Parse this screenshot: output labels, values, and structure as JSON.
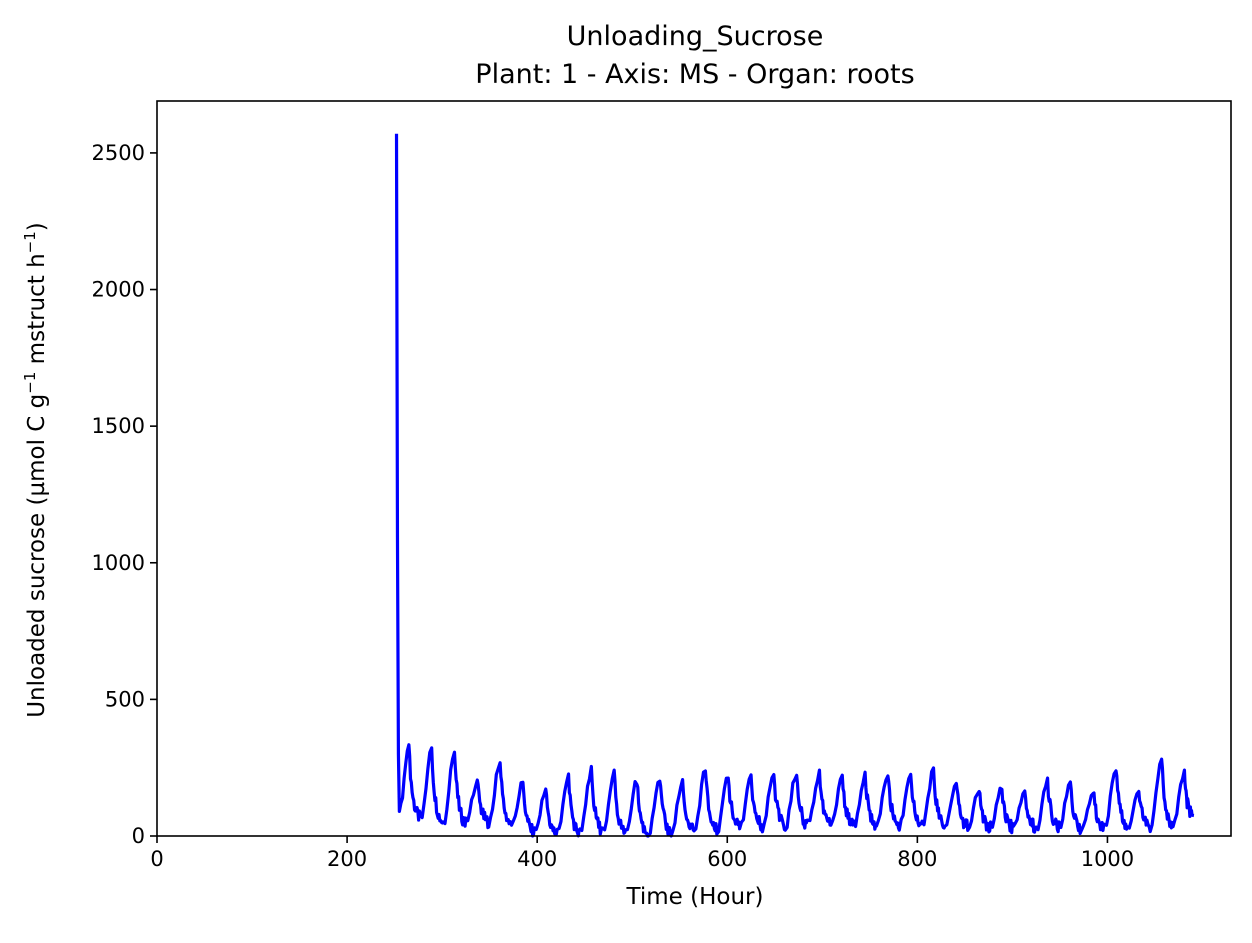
{
  "chart_data": {
    "type": "line",
    "title": "Unloading_Sucrose",
    "subtitle": "Plant: 1 - Axis: MS - Organ: roots",
    "xlabel": "Time (Hour)",
    "ylabel": {
      "prefix": "Unloaded sucrose (µmol C g",
      "sup1": "−1",
      "middle": " mstruct h",
      "sup2": "−1",
      "suffix": ")"
    },
    "xlim": [
      0,
      1130
    ],
    "ylim": [
      0,
      2690
    ],
    "xticks": [
      0,
      200,
      400,
      600,
      800,
      1000
    ],
    "yticks": [
      0,
      500,
      1000,
      1500,
      2000,
      2500
    ],
    "grid": false,
    "legend": "none",
    "series": [
      {
        "color": "#0000ff",
        "start_hour": 252,
        "end_hour": 1091,
        "initial_peak": 2570,
        "cycle_period_hours": 24,
        "daily_peaks": [
          {
            "x": 265,
            "y": 330
          },
          {
            "x": 289,
            "y": 310
          },
          {
            "x": 313,
            "y": 310
          },
          {
            "x": 337,
            "y": 205
          },
          {
            "x": 361,
            "y": 270
          },
          {
            "x": 385,
            "y": 195
          },
          {
            "x": 409,
            "y": 170
          },
          {
            "x": 433,
            "y": 220
          },
          {
            "x": 457,
            "y": 240
          },
          {
            "x": 481,
            "y": 230
          },
          {
            "x": 505,
            "y": 200
          },
          {
            "x": 529,
            "y": 210
          },
          {
            "x": 553,
            "y": 195
          },
          {
            "x": 577,
            "y": 240
          },
          {
            "x": 601,
            "y": 220
          },
          {
            "x": 625,
            "y": 215
          },
          {
            "x": 649,
            "y": 225
          },
          {
            "x": 673,
            "y": 235
          },
          {
            "x": 697,
            "y": 230
          },
          {
            "x": 721,
            "y": 210
          },
          {
            "x": 745,
            "y": 220
          },
          {
            "x": 769,
            "y": 220
          },
          {
            "x": 793,
            "y": 230
          },
          {
            "x": 817,
            "y": 240
          },
          {
            "x": 841,
            "y": 195
          },
          {
            "x": 865,
            "y": 175
          },
          {
            "x": 889,
            "y": 175
          },
          {
            "x": 913,
            "y": 170
          },
          {
            "x": 937,
            "y": 200
          },
          {
            "x": 961,
            "y": 200
          },
          {
            "x": 985,
            "y": 165
          },
          {
            "x": 1009,
            "y": 250
          },
          {
            "x": 1033,
            "y": 165
          },
          {
            "x": 1057,
            "y": 280
          },
          {
            "x": 1081,
            "y": 230
          }
        ],
        "daily_minima": [
          55,
          40,
          35,
          45,
          30,
          5,
          0,
          0,
          10,
          5,
          0,
          5,
          10,
          15,
          25,
          30,
          30,
          30,
          35,
          35,
          35,
          35,
          35,
          35,
          30,
          25,
          25,
          25,
          25,
          20,
          20,
          30,
          30,
          30,
          75
        ]
      }
    ]
  }
}
